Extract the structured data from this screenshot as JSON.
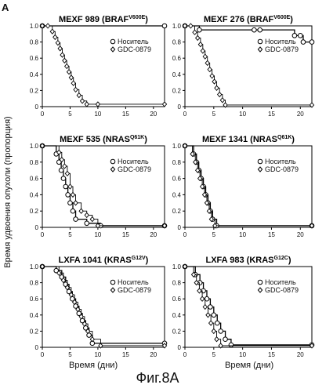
{
  "panel_letter": "A",
  "y_axis_label": "Время удвоения опухоли (пропорция)",
  "x_axis_label": "Время (дни)",
  "caption": "Фиг.8А",
  "chart_data": [
    {
      "type": "line",
      "step": true,
      "title": "MEXF 989 (BRAF",
      "title_superscript": "V600E",
      "title_suffix": ")",
      "xlim": [
        0,
        22
      ],
      "ylim": [
        0,
        1.0
      ],
      "x_ticks": [
        0,
        5,
        10,
        15,
        20
      ],
      "y_ticks": [
        "0",
        "0.2",
        "0.4",
        "0.6",
        "0.8",
        "1.0"
      ],
      "legend": [
        "Носитель",
        "GDC-0879"
      ],
      "series": [
        {
          "name": "Носитель",
          "marker": "open-circle",
          "x": [
            0,
            22
          ],
          "y": [
            1.0,
            1.0
          ]
        },
        {
          "name": "GDC-0879",
          "marker": "diamond",
          "x": [
            0,
            1,
            1.8,
            2.3,
            2.8,
            3.2,
            3.6,
            4.0,
            4.4,
            4.8,
            5.2,
            5.6,
            6.0,
            6.6,
            7.2,
            8.0,
            10.0,
            22
          ],
          "y": [
            1.0,
            1.0,
            0.93,
            0.86,
            0.79,
            0.72,
            0.64,
            0.57,
            0.5,
            0.43,
            0.36,
            0.29,
            0.21,
            0.14,
            0.07,
            0.03,
            0.03,
            0.03
          ]
        }
      ]
    },
    {
      "type": "line",
      "step": true,
      "title": "MEXF 276 (BRAF",
      "title_superscript": "V600E",
      "title_suffix": ")",
      "xlim": [
        0,
        22
      ],
      "ylim": [
        0,
        1.0
      ],
      "x_ticks": [
        0,
        5,
        10,
        15,
        20
      ],
      "y_ticks": [
        "0",
        "0.2",
        "0.4",
        "0.6",
        "0.8",
        "1.0"
      ],
      "legend": [
        "Носитель",
        "GDC-0879"
      ],
      "series": [
        {
          "name": "Носитель",
          "marker": "open-circle",
          "x": [
            0,
            2.5,
            12,
            13,
            19,
            20,
            20.5,
            22
          ],
          "y": [
            1.0,
            0.95,
            0.95,
            0.95,
            0.88,
            0.88,
            0.8,
            0.8
          ]
        },
        {
          "name": "GDC-0879",
          "marker": "diamond",
          "x": [
            0,
            1,
            1.7,
            2.2,
            2.7,
            3.1,
            3.5,
            3.9,
            4.3,
            4.7,
            5.1,
            5.5,
            6.0,
            6.5,
            7.0,
            22
          ],
          "y": [
            1.0,
            1.0,
            0.92,
            0.85,
            0.77,
            0.69,
            0.62,
            0.54,
            0.46,
            0.38,
            0.31,
            0.23,
            0.15,
            0.08,
            0.02,
            0.02
          ]
        }
      ]
    },
    {
      "type": "line",
      "step": true,
      "title": "MEXF 535 (NRAS",
      "title_superscript": "Q61K",
      "title_suffix": ")",
      "xlim": [
        0,
        22
      ],
      "ylim": [
        0,
        1.0
      ],
      "x_ticks": [
        0,
        5,
        10,
        15,
        20
      ],
      "y_ticks": [
        "0",
        "0.2",
        "0.4",
        "0.6",
        "0.8",
        "1.0"
      ],
      "legend": [
        "Носитель",
        "GDC-0879"
      ],
      "series": [
        {
          "name": "Носитель",
          "marker": "open-circle",
          "x": [
            0,
            2.5,
            3.0,
            3.4,
            3.8,
            4.2,
            4.6,
            5.0,
            5.5,
            6.0,
            8.0,
            10.5,
            22
          ],
          "y": [
            1.0,
            0.9,
            0.8,
            0.7,
            0.6,
            0.5,
            0.4,
            0.3,
            0.2,
            0.1,
            0.05,
            0.02,
            0.02
          ]
        },
        {
          "name": "GDC-0879",
          "marker": "diamond",
          "x": [
            0,
            3.0,
            3.5,
            4.0,
            4.5,
            5.0,
            5.5,
            6.0,
            7.0,
            8.0,
            9.0,
            10.0,
            22
          ],
          "y": [
            1.0,
            0.92,
            0.83,
            0.75,
            0.66,
            0.5,
            0.4,
            0.3,
            0.2,
            0.15,
            0.1,
            0.02,
            0.02
          ]
        }
      ]
    },
    {
      "type": "line",
      "step": true,
      "title": "MEXF 1341 (NRAS",
      "title_superscript": "Q61K",
      "title_suffix": ")",
      "xlim": [
        0,
        22
      ],
      "ylim": [
        0,
        1.0
      ],
      "x_ticks": [
        0,
        5,
        10,
        15,
        20
      ],
      "y_ticks": [
        "0",
        "0.2",
        "0.4",
        "0.6",
        "0.8",
        "1.0"
      ],
      "legend": [
        "Носитель",
        "GDC-0879"
      ],
      "series": [
        {
          "name": "Носитель",
          "marker": "open-circle",
          "x": [
            0,
            1.5,
            2.0,
            2.4,
            2.8,
            3.2,
            3.6,
            4.0,
            4.4,
            4.8,
            5.5,
            22
          ],
          "y": [
            1.0,
            0.9,
            0.8,
            0.7,
            0.6,
            0.5,
            0.4,
            0.3,
            0.2,
            0.1,
            0.02,
            0.02
          ]
        },
        {
          "name": "GDC-0879",
          "marker": "diamond",
          "x": [
            0,
            1.3,
            1.8,
            2.2,
            2.6,
            3.0,
            3.4,
            3.8,
            4.2,
            4.6,
            5.2,
            22
          ],
          "y": [
            1.0,
            0.9,
            0.8,
            0.7,
            0.6,
            0.5,
            0.4,
            0.3,
            0.2,
            0.1,
            0.02,
            0.02
          ]
        }
      ]
    },
    {
      "type": "line",
      "step": true,
      "title": "LXFA 1041 (KRAS",
      "title_superscript": "G12V",
      "title_suffix": ")",
      "xlim": [
        0,
        22
      ],
      "ylim": [
        0,
        1.0
      ],
      "x_ticks": [
        0,
        5,
        10,
        15,
        20
      ],
      "y_ticks": [
        "0",
        "0.2",
        "0.4",
        "0.6",
        "0.8",
        "1.0"
      ],
      "legend": [
        "Носитель",
        "GDC-0879"
      ],
      "series": [
        {
          "name": "Носитель",
          "marker": "open-circle",
          "x": [
            0,
            2.5,
            3.5,
            4.2,
            4.8,
            5.4,
            6.0,
            6.6,
            7.2,
            7.8,
            8.4,
            9.0,
            22
          ],
          "y": [
            1.0,
            0.95,
            0.87,
            0.78,
            0.69,
            0.6,
            0.51,
            0.42,
            0.33,
            0.24,
            0.15,
            0.05,
            0.05
          ]
        },
        {
          "name": "GDC-0879",
          "marker": "diamond",
          "x": [
            0,
            3.0,
            3.8,
            4.5,
            5.2,
            5.8,
            6.4,
            7.0,
            7.6,
            8.2,
            9.0,
            10.5,
            22
          ],
          "y": [
            1.0,
            0.92,
            0.83,
            0.74,
            0.65,
            0.56,
            0.47,
            0.38,
            0.29,
            0.2,
            0.1,
            0.02,
            0.02
          ]
        }
      ]
    },
    {
      "type": "line",
      "step": true,
      "title": "LXFA 983 (KRAS",
      "title_superscript": "G12C",
      "title_suffix": ")",
      "xlim": [
        0,
        22
      ],
      "ylim": [
        0,
        1.0
      ],
      "x_ticks": [
        0,
        5,
        10,
        15,
        20
      ],
      "y_ticks": [
        "0",
        "0.2",
        "0.4",
        "0.6",
        "0.8",
        "1.0"
      ],
      "legend": [
        "Носитель",
        "GDC-0879"
      ],
      "series": [
        {
          "name": "Носитель",
          "marker": "open-circle",
          "x": [
            0,
            1.8,
            2.6,
            3.2,
            3.8,
            4.4,
            5.0,
            5.6,
            6.2,
            7.0,
            8.0,
            22
          ],
          "y": [
            1.0,
            0.9,
            0.8,
            0.7,
            0.6,
            0.5,
            0.4,
            0.3,
            0.2,
            0.1,
            0.03,
            0.03
          ]
        },
        {
          "name": "GDC-0879",
          "marker": "diamond",
          "x": [
            0,
            1.5,
            2.0,
            2.5,
            3.0,
            3.5,
            4.0,
            4.5,
            5.0,
            5.5,
            6.2,
            22
          ],
          "y": [
            1.0,
            0.9,
            0.8,
            0.7,
            0.6,
            0.5,
            0.4,
            0.3,
            0.2,
            0.1,
            0.02,
            0.02
          ]
        }
      ]
    }
  ]
}
